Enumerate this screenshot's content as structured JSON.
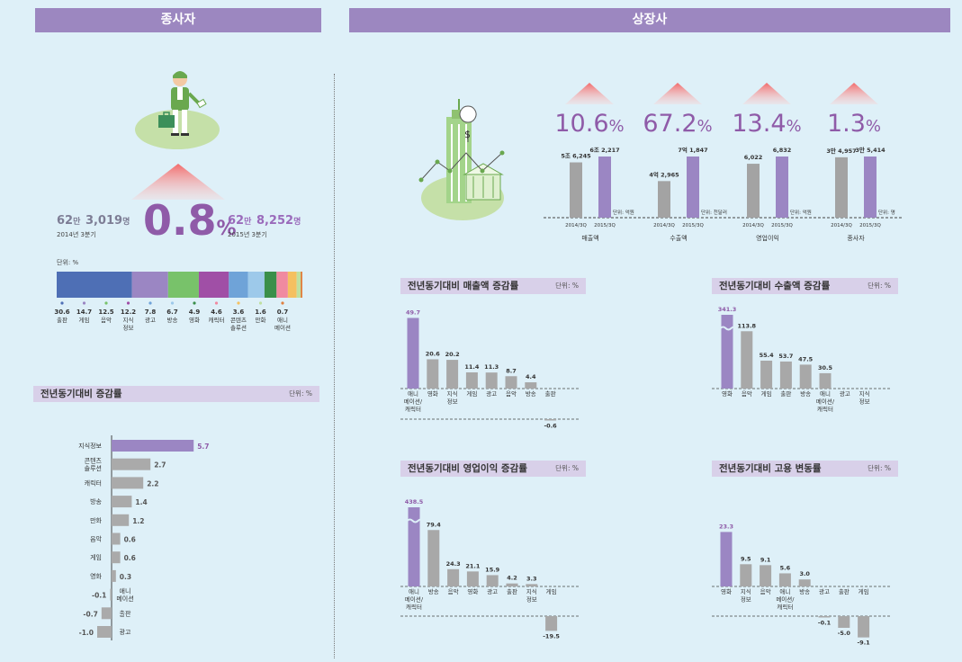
{
  "headers": {
    "left": "종사자",
    "right": "상장사"
  },
  "employees": {
    "prev_value": "62",
    "prev_unit1": "만",
    "prev_value2": "3,019",
    "prev_unit2": "명",
    "prev_period": "2014년 3분기",
    "change": "0.8",
    "change_unit": "%",
    "curr_value": "62",
    "curr_unit1": "만",
    "curr_value2": "8,252",
    "curr_unit2": "명",
    "curr_period": "2015년 3분기"
  },
  "share": {
    "unit": "단위: %",
    "items": [
      {
        "value": "30.6",
        "label": "출판",
        "color": "#4e6fb5"
      },
      {
        "value": "14.7",
        "label": "게임",
        "color": "#9b86c3"
      },
      {
        "value": "12.5",
        "label": "음악",
        "color": "#78c26a"
      },
      {
        "value": "12.2",
        "label": "지식\n정보",
        "color": "#a04fa6"
      },
      {
        "value": "7.8",
        "label": "광고",
        "color": "#6fa3d8"
      },
      {
        "value": "6.7",
        "label": "방송",
        "color": "#9dc9ea"
      },
      {
        "value": "4.9",
        "label": "영화",
        "color": "#3a8f4a"
      },
      {
        "value": "4.6",
        "label": "캐릭터",
        "color": "#f08aa0"
      },
      {
        "value": "3.6",
        "label": "콘텐츠\n솔루션",
        "color": "#f5c060"
      },
      {
        "value": "1.6",
        "label": "만화",
        "color": "#c0e0a0"
      },
      {
        "value": "0.7",
        "label": "애니\n메이션",
        "color": "#e08040"
      }
    ]
  },
  "emp_growth": {
    "title": "전년동기대비 증감률",
    "unit": "단위: %",
    "chart_data": {
      "type": "bar",
      "orientation": "horizontal",
      "categories": [
        "지식정보",
        "콘텐츠\n솔루션",
        "캐릭터",
        "방송",
        "만화",
        "음악",
        "게임",
        "영화",
        "애니\n메이션",
        "출판",
        "광고"
      ],
      "values": [
        5.7,
        2.7,
        2.2,
        1.4,
        1.2,
        0.6,
        0.6,
        0.3,
        -0.1,
        -0.7,
        -1.0
      ],
      "labels": [
        "5.7",
        "2.7",
        "2.2",
        "1.4",
        "1.2",
        "0.6",
        "0.6",
        "0.3",
        "-0.1",
        "-0.7",
        "-1.0"
      ]
    }
  },
  "listed": {
    "metrics": [
      {
        "pct": "10.6",
        "unit": "%",
        "prev_label": "5조 6,245",
        "curr_label": "6조 2,217",
        "unit_label": "단위: 억원",
        "x_label": "매출액",
        "prev_value": 56245,
        "curr_value": 62217
      },
      {
        "pct": "67.2",
        "unit": "%",
        "prev_label": "4억 2,965",
        "curr_label": "7억 1,847",
        "unit_label": "단위: 천달러",
        "x_label": "수출액",
        "prev_value": 42965,
        "curr_value": 71847
      },
      {
        "pct": "13.4",
        "unit": "%",
        "prev_label": "6,022",
        "curr_label": "6,832",
        "unit_label": "단위: 억원",
        "x_label": "영업이익",
        "prev_value": 6022,
        "curr_value": 6832
      },
      {
        "pct": "1.3",
        "unit": "%",
        "prev_label": "3만 4,957",
        "curr_label": "3만 5,414",
        "unit_label": "단위: 명",
        "x_label": "종사자",
        "prev_value": 34957,
        "curr_value": 35414
      }
    ],
    "periods": [
      "2014/3Q",
      "2015/3Q"
    ]
  },
  "sales_growth": {
    "title": "전년동기대비 매출액 증감률",
    "unit": "단위: %",
    "chart_data": {
      "type": "bar",
      "categories": [
        "애니\n메이션/\n캐릭터",
        "영화",
        "지식\n정보",
        "게임",
        "광고",
        "음악",
        "방송",
        "출판"
      ],
      "values": [
        49.7,
        20.6,
        20.2,
        11.4,
        11.3,
        8.7,
        4.4,
        -0.6
      ],
      "labels": [
        "49.7",
        "20.6",
        "20.2",
        "11.4",
        "11.3",
        "8.7",
        "4.4",
        "-0.6"
      ]
    }
  },
  "export_growth": {
    "title": "전년동기대비 수출액 증감률",
    "unit": "단위: %",
    "chart_data": {
      "type": "bar",
      "categories": [
        "영화",
        "음악",
        "게임",
        "출판",
        "방송",
        "애니\n메이션/\n캐릭터",
        "광고",
        "지식\n정보"
      ],
      "values": [
        341.3,
        113.8,
        55.4,
        53.7,
        47.5,
        30.5,
        0,
        0
      ],
      "labels": [
        "341.3",
        "113.8",
        "55.4",
        "53.7",
        "47.5",
        "30.5",
        "",
        ""
      ],
      "axis_break": true
    }
  },
  "op_growth": {
    "title": "전년동기대비 영업이익 증감률",
    "unit": "단위: %",
    "chart_data": {
      "type": "bar",
      "categories": [
        "애니\n메이션/\n캐릭터",
        "방송",
        "음악",
        "영화",
        "광고",
        "출판",
        "지식\n정보",
        "게임"
      ],
      "values": [
        438.5,
        79.4,
        24.3,
        21.1,
        15.9,
        4.2,
        3.3,
        -19.5
      ],
      "labels": [
        "438.5",
        "79.4",
        "24.3",
        "21.1",
        "15.9",
        "4.2",
        "3.3",
        "-19.5"
      ],
      "axis_break": true
    }
  },
  "emp_change": {
    "title": "전년동기대비 고용 변동률",
    "unit": "단위: %",
    "chart_data": {
      "type": "bar",
      "categories": [
        "영화",
        "지식\n정보",
        "음악",
        "애니\n메이션/\n캐릭터",
        "방송",
        "광고",
        "출판",
        "게임"
      ],
      "values": [
        23.3,
        9.5,
        9.1,
        5.6,
        3.0,
        -0.1,
        -5.0,
        -9.1
      ],
      "labels": [
        "23.3",
        "9.5",
        "9.1",
        "5.6",
        "3.0",
        "-0.1",
        "-5.0",
        "-9.1"
      ]
    }
  }
}
